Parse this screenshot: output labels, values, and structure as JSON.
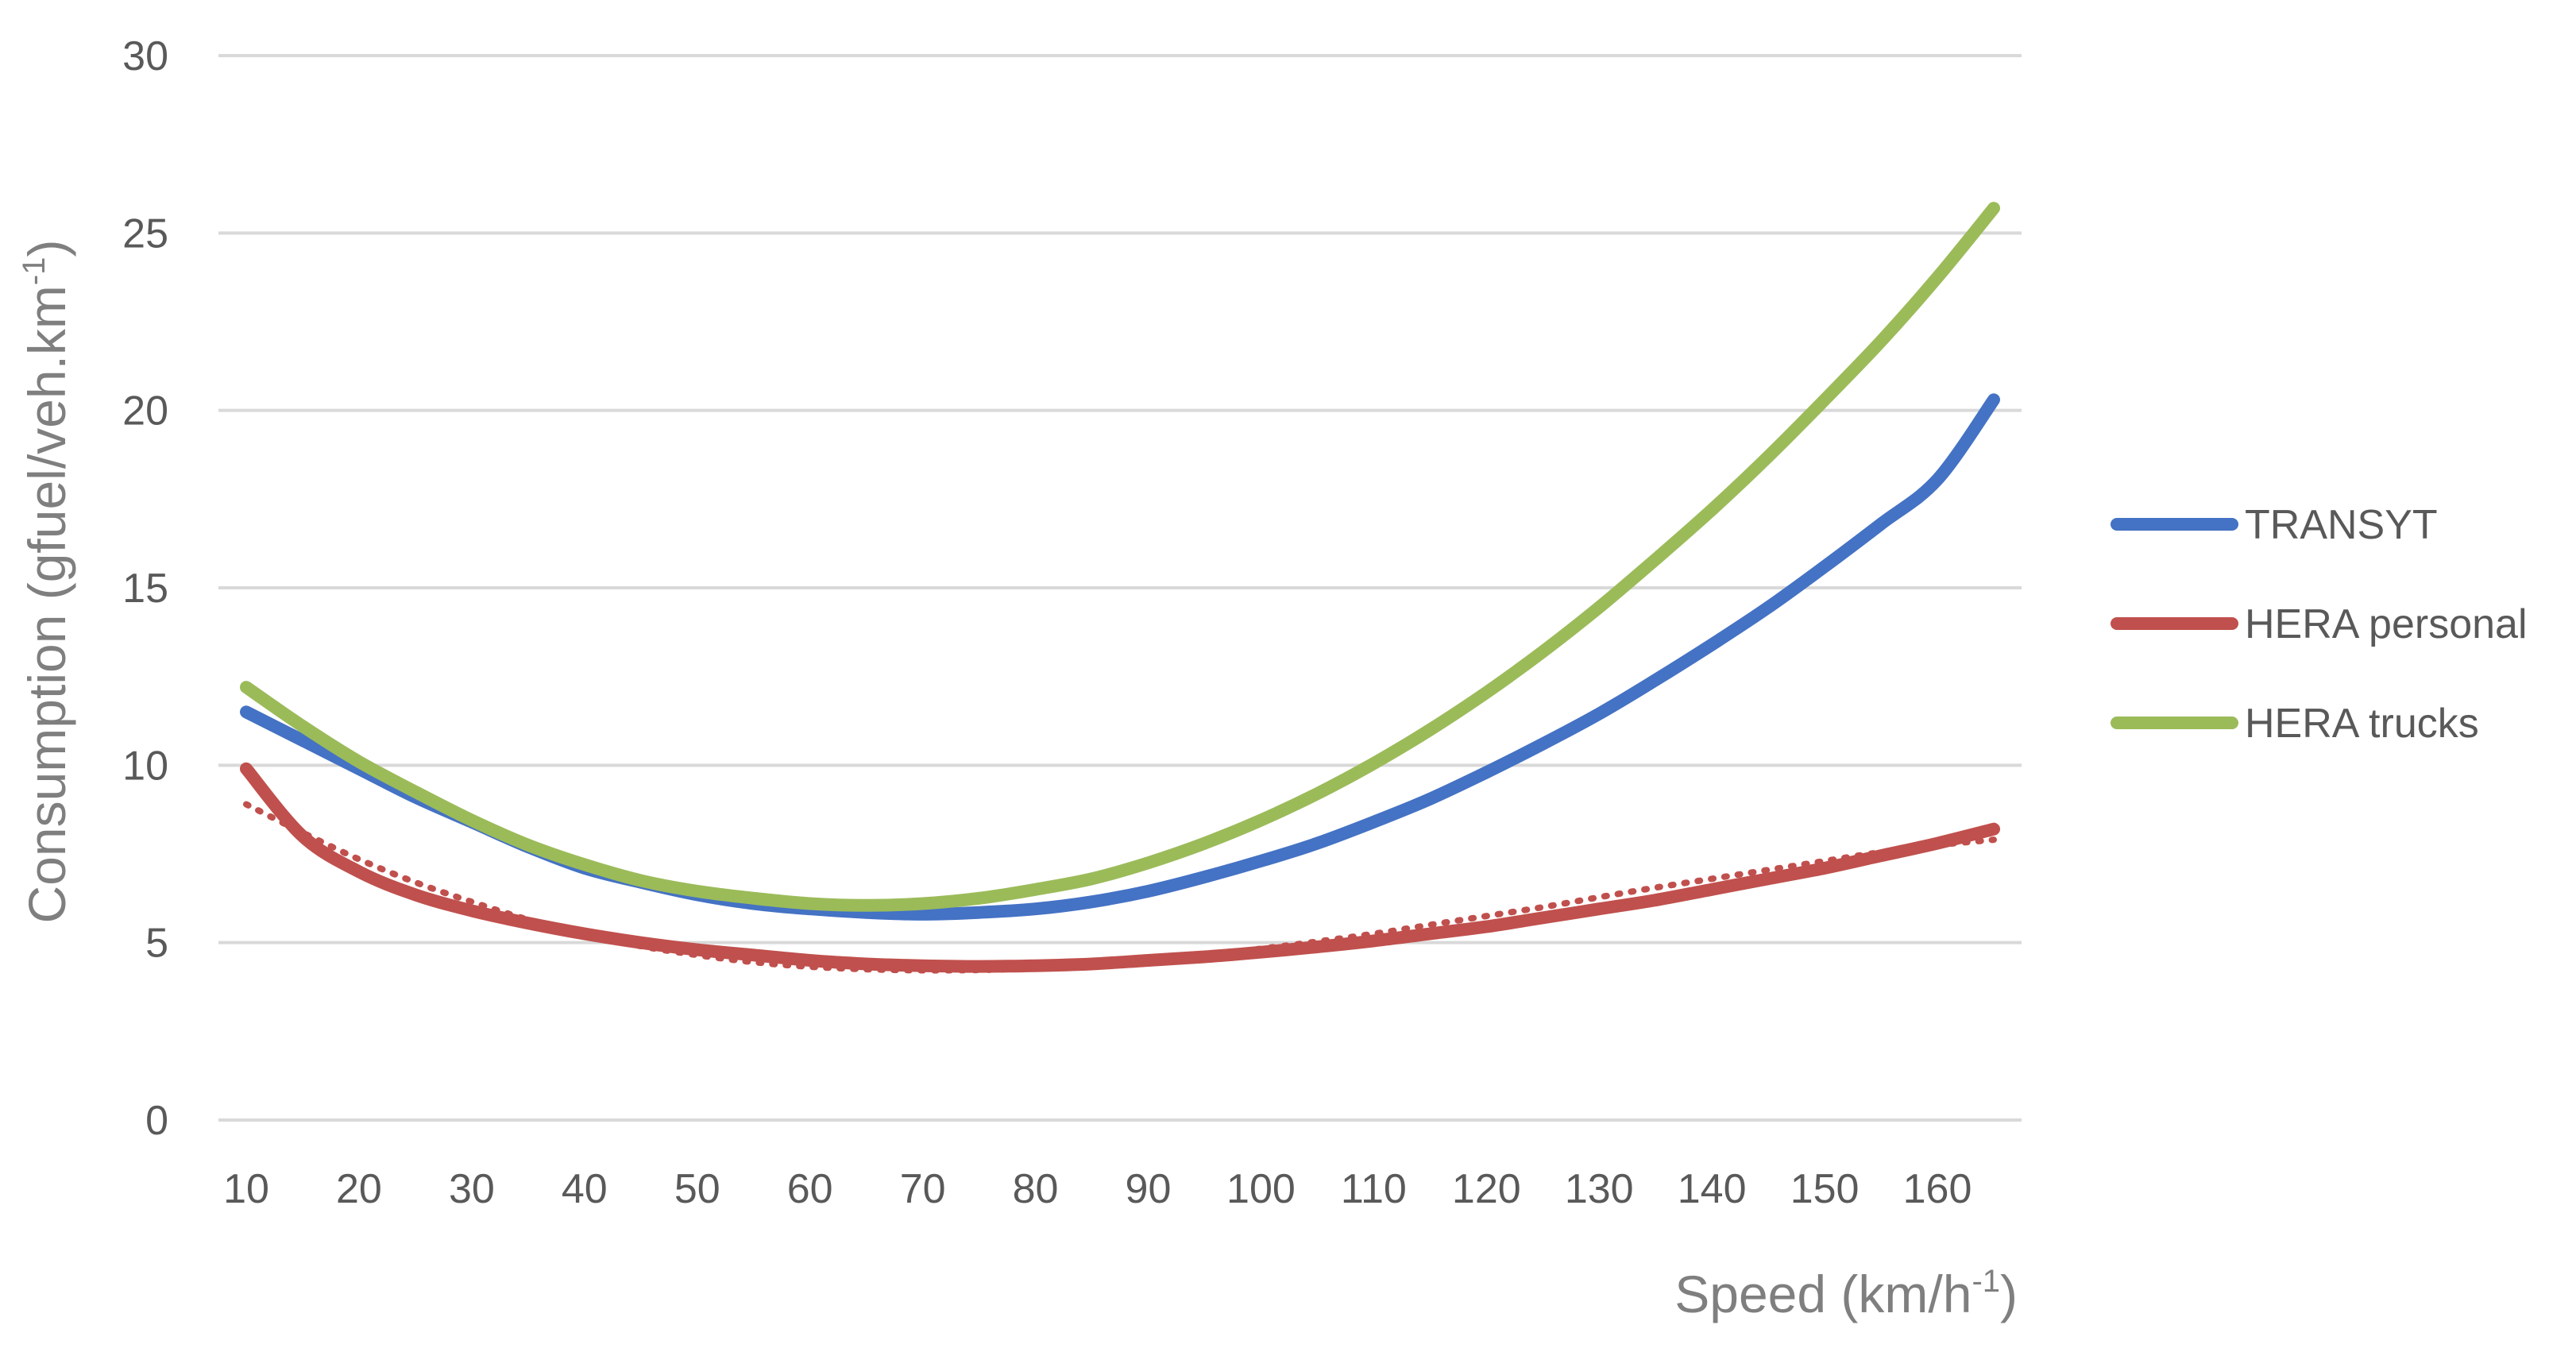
{
  "chart_data": {
    "type": "line",
    "title": "",
    "xlabel": "Speed  (km/h",
    "xlabel_sup": "-1",
    "xlabel_end": ")",
    "ylabel": "Consumption  (gfuel/veh.km",
    "ylabel_sup": "-1",
    "ylabel_end": ")",
    "xlim": [
      10,
      165
    ],
    "ylim": [
      0,
      30
    ],
    "x_ticks": [
      "10",
      "20",
      "30",
      "40",
      "50",
      "60",
      "70",
      "80",
      "90",
      "100",
      "110",
      "120",
      "130",
      "140",
      "150",
      "160"
    ],
    "y_ticks": [
      "0",
      "5",
      "10",
      "15",
      "20",
      "25",
      "30"
    ],
    "grid": true,
    "legend_position": "right",
    "x": [
      10,
      15,
      20,
      25,
      30,
      35,
      40,
      45,
      50,
      55,
      60,
      65,
      70,
      75,
      80,
      85,
      90,
      95,
      100,
      105,
      110,
      115,
      120,
      125,
      130,
      135,
      140,
      145,
      150,
      155,
      160,
      165
    ],
    "series": [
      {
        "name": "TRANSYT",
        "color": "#4472c4",
        "values": [
          11.5,
          10.7,
          9.9,
          9.1,
          8.4,
          7.7,
          7.1,
          6.7,
          6.35,
          6.1,
          5.95,
          5.85,
          5.8,
          5.85,
          5.95,
          6.15,
          6.45,
          6.85,
          7.3,
          7.8,
          8.4,
          9.05,
          9.8,
          10.6,
          11.45,
          12.4,
          13.4,
          14.45,
          15.6,
          16.8,
          18.05,
          20.3
        ]
      },
      {
        "name": "HERA personal",
        "color": "#c0504d",
        "values": [
          9.9,
          8.0,
          7.0,
          6.35,
          5.9,
          5.55,
          5.25,
          5.0,
          4.8,
          4.65,
          4.5,
          4.4,
          4.35,
          4.33,
          4.35,
          4.4,
          4.5,
          4.6,
          4.73,
          4.88,
          5.05,
          5.25,
          5.45,
          5.7,
          5.95,
          6.2,
          6.5,
          6.8,
          7.1,
          7.45,
          7.8,
          8.2
        ]
      },
      {
        "name": "HERA trucks",
        "color": "#9bbb59",
        "values": [
          12.2,
          11.1,
          10.1,
          9.25,
          8.45,
          7.75,
          7.2,
          6.75,
          6.45,
          6.25,
          6.1,
          6.05,
          6.1,
          6.25,
          6.5,
          6.8,
          7.25,
          7.8,
          8.45,
          9.2,
          10.05,
          11.0,
          12.05,
          13.2,
          14.45,
          15.8,
          17.2,
          18.7,
          20.3,
          21.95,
          23.75,
          25.7
        ]
      }
    ],
    "trendline": {
      "series": "HERA personal",
      "style": "dotted",
      "color": "#c0504d",
      "values": [
        8.9,
        8.1,
        7.35,
        6.7,
        6.15,
        5.65,
        5.25,
        4.9,
        4.65,
        4.45,
        4.32,
        4.25,
        4.22,
        4.23,
        4.28,
        4.37,
        4.5,
        4.65,
        4.83,
        5.03,
        5.25,
        5.5,
        5.75,
        6.0,
        6.28,
        6.55,
        6.8,
        7.05,
        7.3,
        7.55,
        7.75,
        7.9
      ]
    }
  }
}
